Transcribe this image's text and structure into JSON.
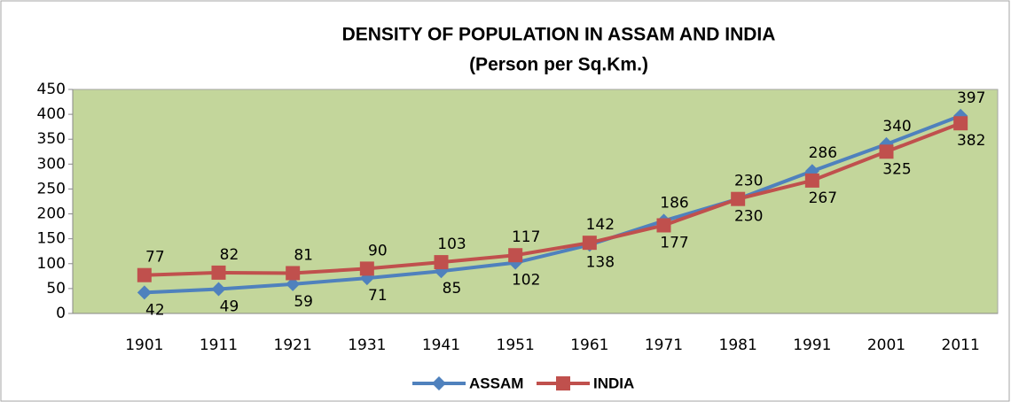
{
  "chart_data": {
    "type": "line",
    "title": "DENSITY OF POPULATION IN ASSAM AND INDIA",
    "subtitle": "(Person per Sq.Km.)",
    "categories": [
      "1901",
      "1911",
      "1921",
      "1931",
      "1941",
      "1951",
      "1961",
      "1971",
      "1981",
      "1991",
      "2001",
      "2011"
    ],
    "series": [
      {
        "name": "ASSAM",
        "color": "#4f81bd",
        "marker": "diamond",
        "values": [
          42,
          49,
          59,
          71,
          85,
          102,
          138,
          186,
          230,
          286,
          340,
          397
        ]
      },
      {
        "name": "INDIA",
        "color": "#c0504d",
        "marker": "square",
        "values": [
          77,
          82,
          81,
          90,
          103,
          117,
          142,
          177,
          230,
          267,
          325,
          382
        ]
      }
    ],
    "ylim": [
      0,
      450
    ],
    "yticks": [
      0,
      50,
      100,
      150,
      200,
      250,
      300,
      350,
      400,
      450
    ],
    "grid": false,
    "legend": "bottom",
    "plot_background": "#c3d69b"
  }
}
